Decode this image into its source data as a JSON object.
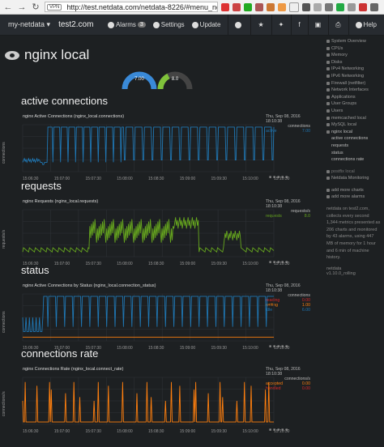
{
  "browser": {
    "url": "http://test.netdata.com/netdata-8226/#menu_nginx_k",
    "vpn_label": "VPN"
  },
  "navbar": {
    "host_menu": "my-netdata",
    "host_name": "test2.com",
    "alarms_label": "Alarms",
    "alarms_count": "3",
    "settings_label": "Settings",
    "update_label": "Update",
    "help_label": "Help"
  },
  "page": {
    "title": "nginx local",
    "gauge1_value": "7.00",
    "gauge2_value": "8.0"
  },
  "sections": [
    {
      "heading": "active connections"
    },
    {
      "heading": "requests"
    },
    {
      "heading": "status"
    },
    {
      "heading": "connections rate"
    }
  ],
  "charts": [
    {
      "title": "nginx Active Connections (nginx_local.connections)",
      "ylabel": "connections",
      "date": "Thu, Sep 08, 2016",
      "time": "18:10:38",
      "unit": "connections",
      "legend": [
        {
          "name": "active",
          "value": "7.00",
          "color": "#1f77b4"
        }
      ],
      "ticks": [
        "15:06:30",
        "15:07:00",
        "15:07:30",
        "15:08:00",
        "15:08:30",
        "15:09:00",
        "15:09:30",
        "15:10:00",
        "15:10:30"
      ]
    },
    {
      "title": "nginx Requests (nginx_local.requests)",
      "ylabel": "requests/s",
      "date": "Thu, Sep 08, 2016",
      "time": "18:10:38",
      "unit": "requests/s",
      "legend": [
        {
          "name": "requests",
          "value": "8.0",
          "color": "#66a61e"
        }
      ],
      "ticks": [
        "15:06:30",
        "15:07:00",
        "15:07:30",
        "15:08:00",
        "15:08:30",
        "15:09:00",
        "15:09:30",
        "15:10:00",
        "15:10:30"
      ]
    },
    {
      "title": "nginx Active Connections by Status (nginx_local.connection_status)",
      "ylabel": "connections",
      "date": "Thu, Sep 08, 2016",
      "time": "18:10:38",
      "unit": "connections",
      "legend": [
        {
          "name": "reading",
          "value": "0.00",
          "color": "#d62728"
        },
        {
          "name": "writing",
          "value": "1.00",
          "color": "#ff7f0e"
        },
        {
          "name": "idle",
          "value": "6.00",
          "color": "#1f77b4"
        }
      ],
      "ticks": [
        "15:06:30",
        "15:07:00",
        "15:07:30",
        "15:08:00",
        "15:08:30",
        "15:09:00",
        "15:09:30",
        "15:10:00",
        "15:10:30"
      ]
    },
    {
      "title": "nginx Connections Rate (nginx_local.connect_rate)",
      "ylabel": "connections/s",
      "date": "Thu, Sep 08, 2016",
      "time": "18:10:38",
      "unit": "connections/s",
      "legend": [
        {
          "name": "accepted",
          "value": "0.00",
          "color": "#ff7f0e"
        },
        {
          "name": "handled",
          "value": "0.00",
          "color": "#d62728"
        }
      ],
      "ticks": [
        "15:06:30",
        "15:07:00",
        "15:07:30",
        "15:08:00",
        "15:08:30",
        "15:09:00",
        "15:09:30",
        "15:10:00",
        "15:10:30"
      ]
    }
  ],
  "sidebar": {
    "items": [
      "System Overview",
      "CPUs",
      "Memory",
      "Disks",
      "IPv4 Networking",
      "IPv6 Networking",
      "Firewall (netfilter)",
      "Network Interfaces",
      "Applications",
      "User Groups",
      "Users",
      "memcached local",
      "MySQL local",
      "nginx local"
    ],
    "subitems": [
      "active connections",
      "requests",
      "status",
      "connections rate"
    ],
    "items2": [
      "postfix local",
      "Netdata Monitoring"
    ],
    "add_charts": "add more charts",
    "add_alarms": "add more alarms",
    "note": "netdata on test2.com, collects every second 1,344 metrics presented as 206 charts and monitored by 43 alarms, using 447 MB of memory for 1 hour and 6 min of machine history.",
    "version_name": "netdata",
    "version": "v1.10.0_rolling"
  }
}
